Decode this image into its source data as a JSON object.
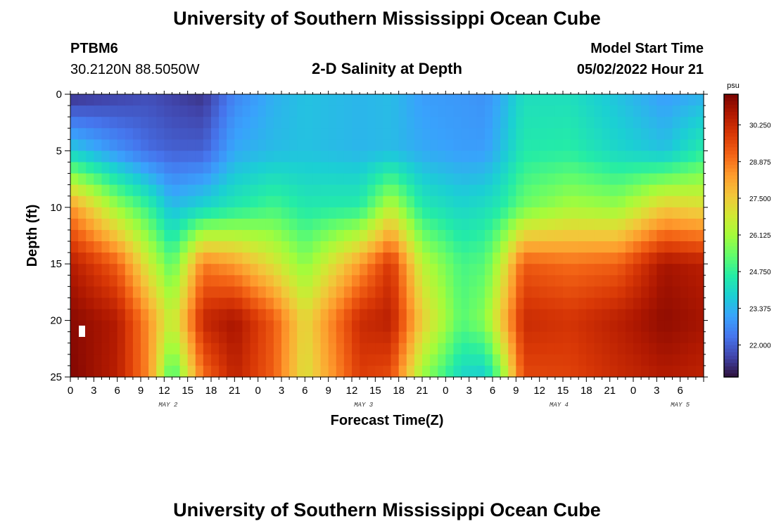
{
  "page": {
    "title_top": "University of Southern Mississippi Ocean Cube",
    "title_bottom": "University of Southern Mississippi Ocean Cube",
    "station": "PTBM6",
    "location": "30.2120N  88.5050W",
    "plot_title": "2-D Salinity at Depth",
    "start_label": "Model Start Time",
    "start_value": "05/02/2022 Hour 21"
  },
  "colors": {
    "colormap": [
      "#30123b",
      "#4145ab",
      "#4675ed",
      "#39a2fc",
      "#1bcfd4",
      "#24eca6",
      "#61fc6c",
      "#a4fc3b",
      "#d1e834",
      "#f3c63a",
      "#fe9b2d",
      "#f36315",
      "#d93806",
      "#b11901",
      "#7a0402"
    ]
  },
  "chart_data": {
    "type": "heatmap",
    "title": "2-D Salinity at Depth",
    "xlabel": "Forecast Time(Z)",
    "ylabel": "Depth (ft)",
    "ylim": [
      0,
      25
    ],
    "xlim_hours": [
      0,
      81
    ],
    "x_tick_labels": [
      "0",
      "3",
      "6",
      "9",
      "12",
      "15",
      "18",
      "21",
      "0",
      "3",
      "6",
      "9",
      "12",
      "15",
      "18",
      "21",
      "0",
      "3",
      "6",
      "9",
      "12",
      "15",
      "18",
      "21",
      "0",
      "3",
      "6"
    ],
    "y_tick_labels": [
      "0",
      "5",
      "10",
      "15",
      "20",
      "25"
    ],
    "day_labels": [
      {
        "text": "MAY 2",
        "hour": 12.5
      },
      {
        "text": "MAY 3",
        "hour": 37.5
      },
      {
        "text": "MAY 4",
        "hour": 62.5
      },
      {
        "text": "MAY 5",
        "hour": 78
      }
    ],
    "colorbar": {
      "unit": "psu",
      "range": [
        20.8,
        31.4
      ],
      "ticks": [
        "30.250",
        "28.875",
        "27.500",
        "26.125",
        "24.750",
        "23.375",
        "22.000"
      ],
      "tick_values": [
        30.25,
        28.875,
        27.5,
        26.125,
        24.75,
        23.375,
        22.0
      ]
    },
    "depth_levels_ft": [
      0,
      5,
      10,
      15,
      20,
      25
    ],
    "series": [
      {
        "name": "hour 0",
        "hour": 0,
        "values": [
          21.2,
          23.8,
          28.5,
          30.6,
          31.2,
          31.3
        ]
      },
      {
        "name": "hour 6",
        "hour": 6,
        "values": [
          21.5,
          22.8,
          26.0,
          29.2,
          30.6,
          30.5
        ]
      },
      {
        "name": "hour 10",
        "hour": 10,
        "values": [
          21.7,
          22.2,
          24.8,
          26.8,
          28.5,
          28.6
        ]
      },
      {
        "name": "hour 13",
        "hour": 13,
        "values": [
          21.5,
          22.0,
          23.5,
          25.2,
          26.5,
          24.8
        ]
      },
      {
        "name": "hour 17",
        "hour": 17,
        "values": [
          21.3,
          22.0,
          24.0,
          28.8,
          30.3,
          29.0
        ]
      },
      {
        "name": "hour 21",
        "hour": 21,
        "values": [
          22.6,
          23.2,
          24.5,
          28.3,
          30.8,
          30.4
        ]
      },
      {
        "name": "hour 26",
        "hour": 26,
        "values": [
          23.3,
          23.5,
          25.0,
          27.0,
          29.3,
          29.2
        ]
      },
      {
        "name": "hour 30",
        "hour": 30,
        "values": [
          23.6,
          23.6,
          24.5,
          25.8,
          27.2,
          27.0
        ]
      },
      {
        "name": "hour 37",
        "hour": 37,
        "values": [
          23.4,
          23.4,
          24.6,
          28.3,
          30.2,
          29.8
        ]
      },
      {
        "name": "hour 41",
        "hour": 41,
        "values": [
          23.5,
          23.5,
          26.5,
          30.0,
          30.5,
          29.5
        ]
      },
      {
        "name": "hour 45",
        "hour": 45,
        "values": [
          23.0,
          23.2,
          24.5,
          26.5,
          27.5,
          26.0
        ]
      },
      {
        "name": "hour 50",
        "hour": 50,
        "values": [
          22.9,
          23.0,
          24.0,
          25.0,
          25.2,
          24.0
        ]
      },
      {
        "name": "hour 53",
        "hour": 53,
        "values": [
          22.8,
          23.0,
          24.2,
          25.2,
          25.8,
          23.8
        ]
      },
      {
        "name": "hour 55",
        "hour": 55,
        "values": [
          23.2,
          23.5,
          24.5,
          26.5,
          27.5,
          25.5
        ]
      },
      {
        "name": "hour 58",
        "hour": 58,
        "values": [
          24.2,
          24.5,
          25.5,
          29.3,
          30.2,
          29.6
        ]
      },
      {
        "name": "hour 64",
        "hour": 64,
        "values": [
          24.2,
          24.6,
          26.2,
          29.0,
          30.0,
          29.7
        ]
      },
      {
        "name": "hour 70",
        "hour": 70,
        "values": [
          23.6,
          24.0,
          26.0,
          29.2,
          30.5,
          30.2
        ]
      },
      {
        "name": "hour 76",
        "hour": 76,
        "values": [
          23.0,
          23.6,
          27.5,
          30.8,
          31.1,
          30.6
        ]
      },
      {
        "name": "hour 81",
        "hour": 81,
        "values": [
          23.3,
          24.6,
          27.2,
          30.5,
          30.8,
          30.4
        ]
      }
    ]
  }
}
